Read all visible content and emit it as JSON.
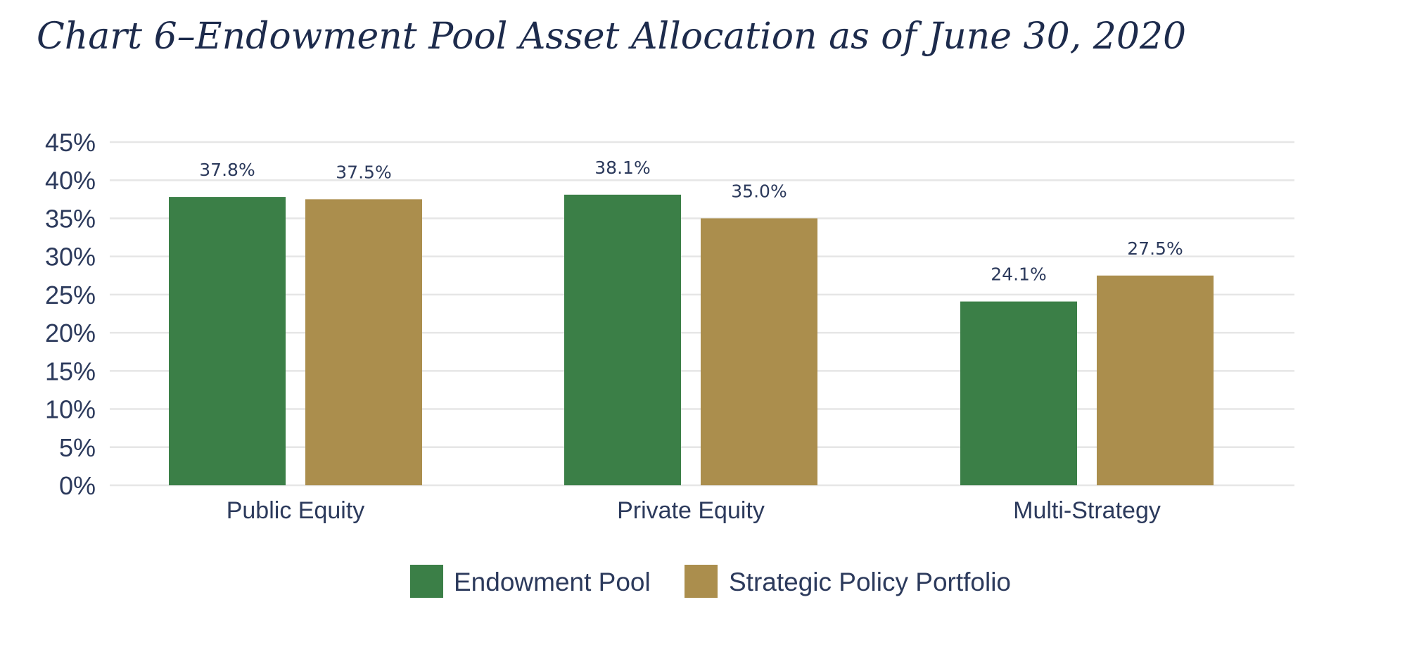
{
  "chart_data": {
    "type": "bar",
    "title": "Chart 6–Endowment Pool Asset Allocation as of June 30, 2020",
    "categories": [
      "Public Equity",
      "Private Equity",
      "Multi-Strategy"
    ],
    "series": [
      {
        "name": "Endowment Pool",
        "color": "#3b7f47",
        "values": [
          37.8,
          38.1,
          24.1
        ],
        "labels": [
          "37.8%",
          "38.1%",
          "24.1%"
        ]
      },
      {
        "name": "Strategic Policy Portfolio",
        "color": "#ab8e4d",
        "values": [
          37.5,
          35.0,
          27.5
        ],
        "labels": [
          "37.5%",
          "35.0%",
          "27.5%"
        ]
      }
    ],
    "xlabel": "",
    "ylabel": "",
    "ylim": [
      0,
      45
    ],
    "yticks": [
      0,
      5,
      10,
      15,
      20,
      25,
      30,
      35,
      40,
      45
    ],
    "ytick_labels": [
      "0%",
      "5%",
      "10%",
      "15%",
      "20%",
      "25%",
      "30%",
      "35%",
      "40%",
      "45%"
    ],
    "grid": true,
    "legend_position": "bottom-center",
    "grid_color": "#e6e6e6"
  }
}
